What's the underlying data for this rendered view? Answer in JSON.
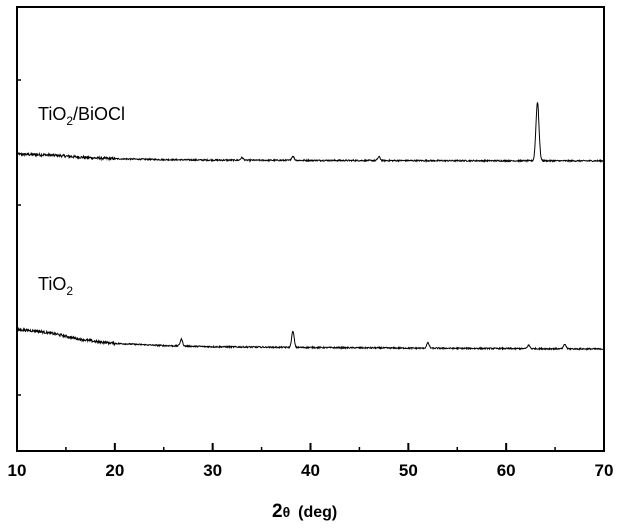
{
  "chart_data": {
    "type": "line",
    "title": "",
    "xlabel_main": "2",
    "xlabel_theta": "θ",
    "xlabel_unit": "(deg)",
    "ylabel": "",
    "xlim": [
      10,
      70
    ],
    "x_ticks": [
      10,
      20,
      30,
      40,
      50,
      60,
      70
    ],
    "y_ticks_labeled": false,
    "grid": false,
    "series": [
      {
        "name": "TiO2/BiOCl",
        "label_main": "TiO",
        "label_sub": "2",
        "label_rest": "/BiOCl",
        "offset_level": "upper",
        "baseline_x": [
          10,
          12,
          14,
          16,
          18,
          20,
          25,
          30,
          40,
          50,
          60,
          70
        ],
        "baseline_y": [
          0.9,
          0.85,
          0.75,
          0.55,
          0.4,
          0.3,
          0.18,
          0.12,
          0.08,
          0.05,
          0.03,
          0.02
        ],
        "peaks": [
          {
            "x": 33.0,
            "height": 0.35
          },
          {
            "x": 38.2,
            "height": 0.55
          },
          {
            "x": 47.0,
            "height": 0.5
          },
          {
            "x": 63.2,
            "height": 7.8
          }
        ]
      },
      {
        "name": "TiO2",
        "label_main": "TiO",
        "label_sub": "2",
        "label_rest": "",
        "offset_level": "lower",
        "baseline_x": [
          10,
          12,
          14,
          16,
          18,
          20,
          25,
          30,
          40,
          50,
          60,
          70
        ],
        "baseline_y": [
          2.6,
          2.4,
          2.0,
          1.4,
          1.0,
          0.75,
          0.45,
          0.3,
          0.2,
          0.12,
          0.06,
          0.0
        ],
        "peaks": [
          {
            "x": 26.8,
            "height": 0.9
          },
          {
            "x": 38.2,
            "height": 2.1
          },
          {
            "x": 52.0,
            "height": 0.7
          },
          {
            "x": 62.3,
            "height": 0.45
          },
          {
            "x": 66.0,
            "height": 0.6
          }
        ]
      }
    ]
  }
}
